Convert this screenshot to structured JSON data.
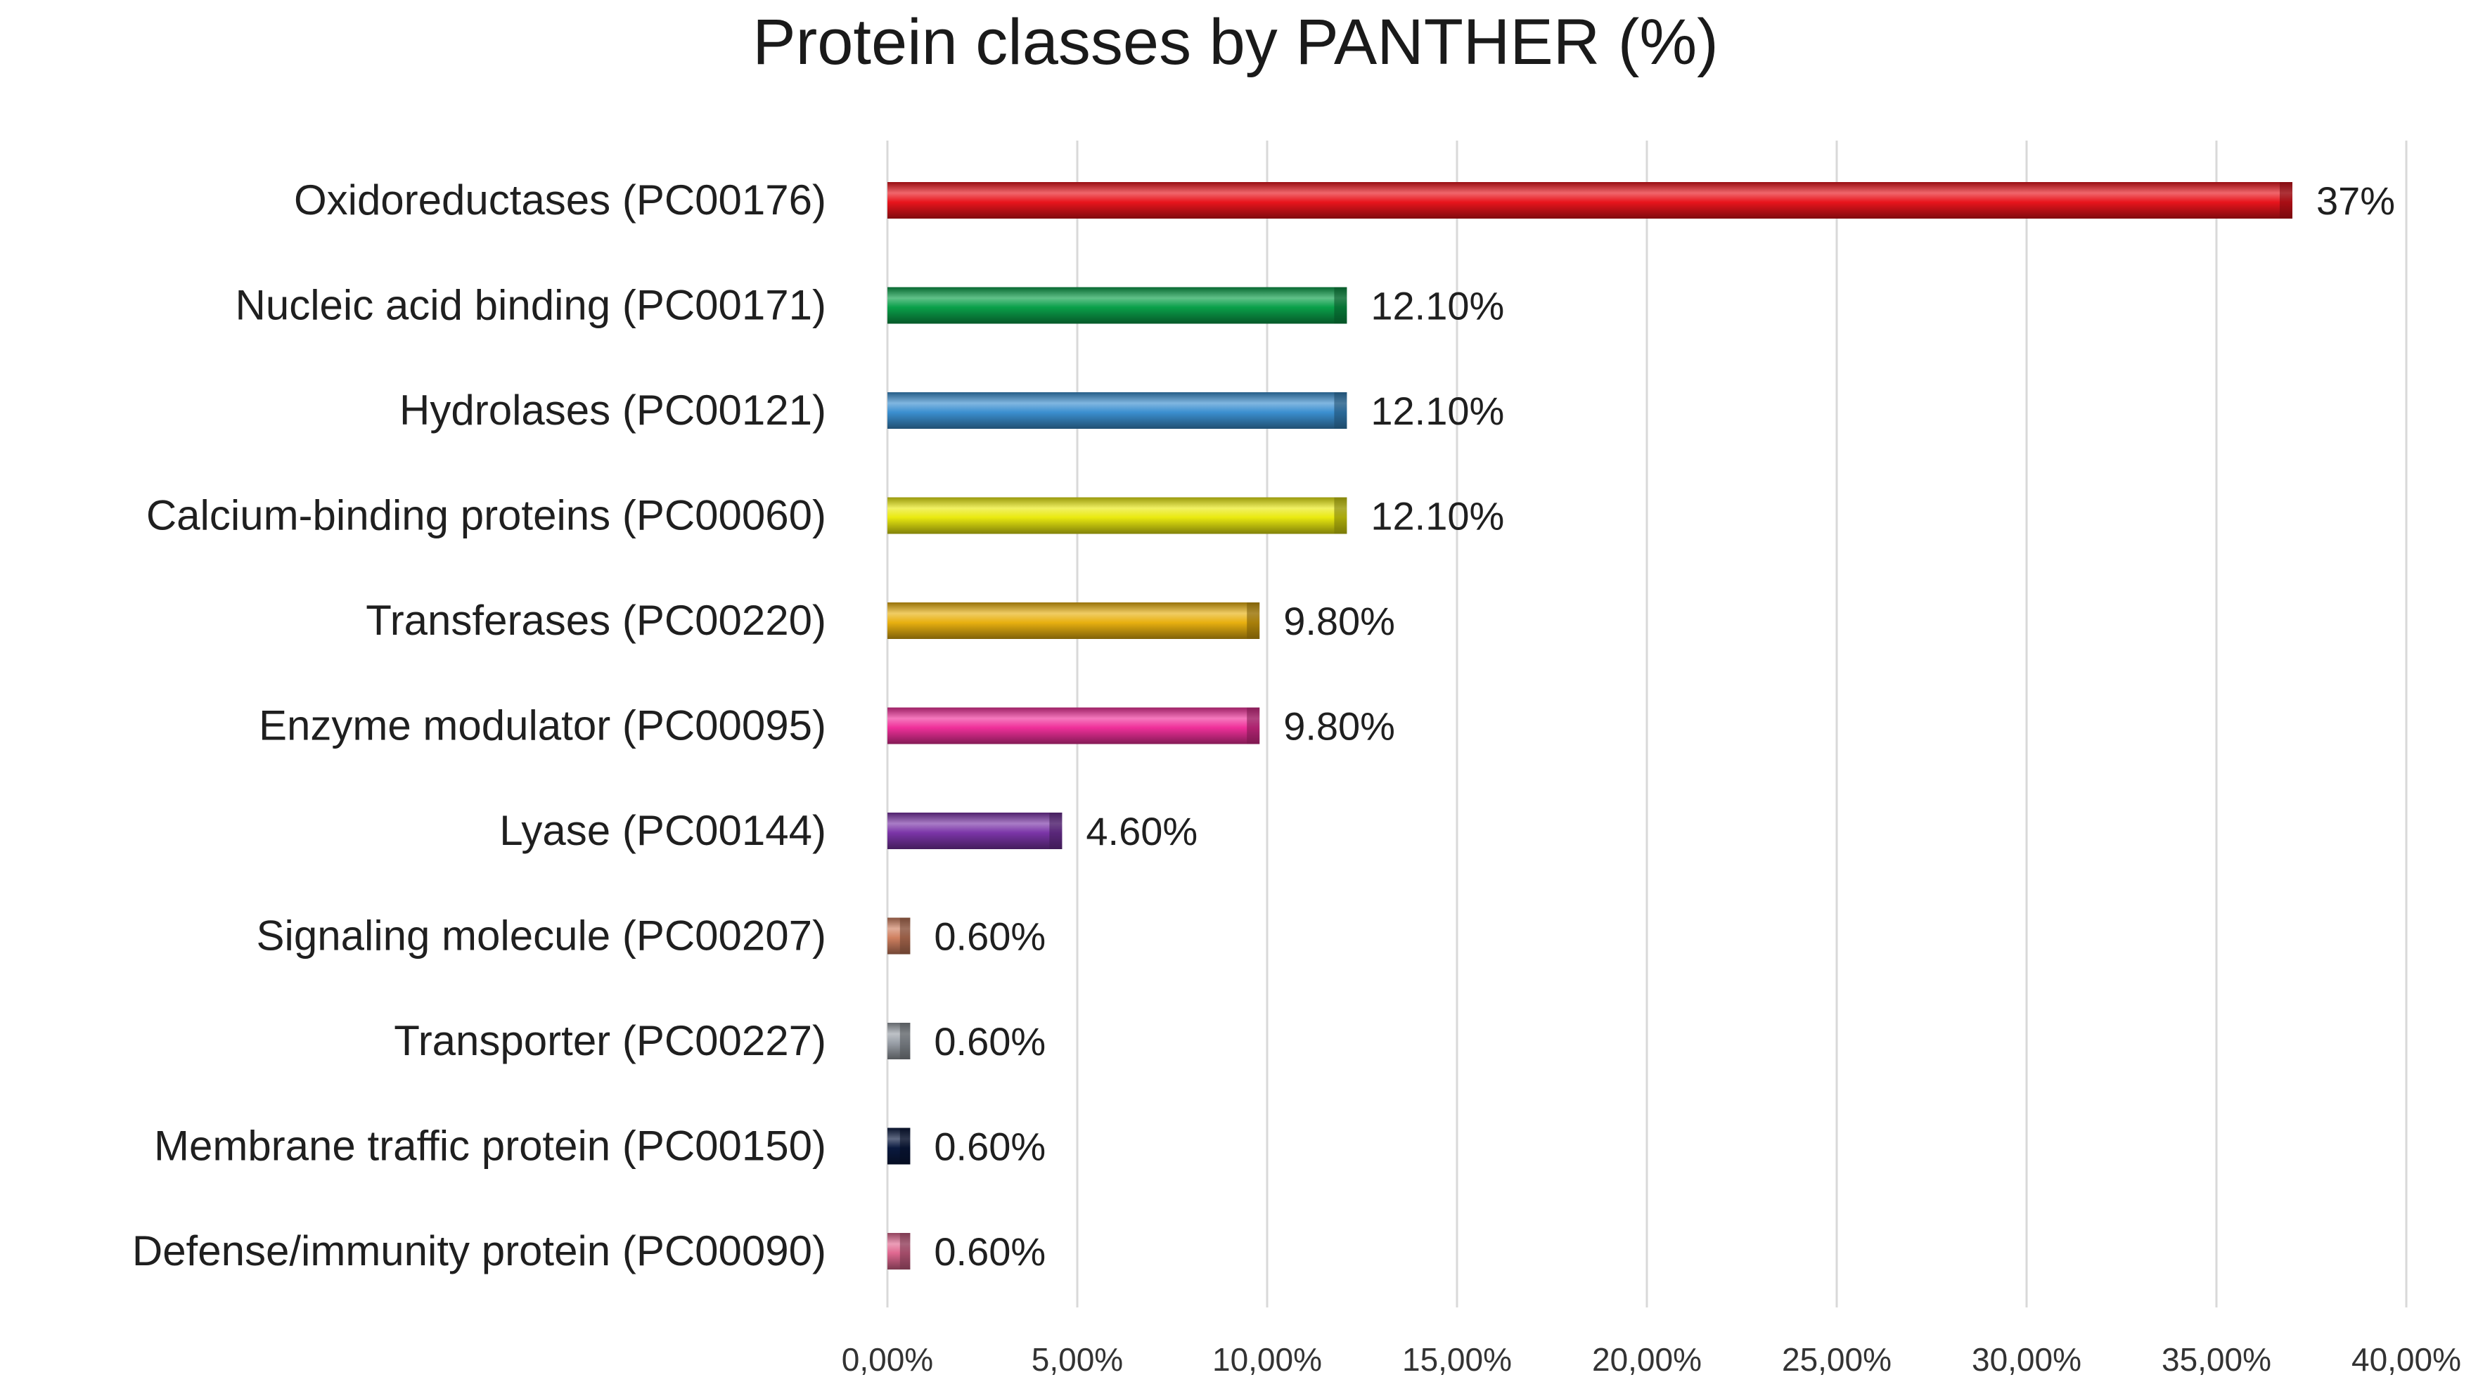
{
  "chart_data": {
    "type": "bar",
    "orientation": "horizontal",
    "title": "Protein classes by PANTHER (%)",
    "xlabel": "",
    "ylabel": "",
    "xlim": [
      0,
      40
    ],
    "grid": true,
    "legend": "none",
    "categories": [
      "Oxidoreductases (PC00176)",
      "Nucleic acid binding (PC00171)",
      "Hydrolases (PC00121)",
      "Calcium-binding proteins (PC00060)",
      "Transferases (PC00220)",
      "Enzyme modulator (PC00095)",
      "Lyase (PC00144)",
      "Signaling molecule (PC00207)",
      "Transporter (PC00227)",
      "Membrane traffic protein (PC00150)",
      "Defense/immunity protein (PC00090)"
    ],
    "values": [
      37,
      12.1,
      12.1,
      12.1,
      9.8,
      9.8,
      4.6,
      0.6,
      0.6,
      0.6,
      0.6
    ],
    "value_labels": [
      "37%",
      "12.10%",
      "12.10%",
      "12.10%",
      "9.80%",
      "9.80%",
      "4.60%",
      "0.60%",
      "0.60%",
      "0.60%",
      "0.60%"
    ],
    "colors": [
      "#e8141c",
      "#0aa04a",
      "#3b8fd0",
      "#eaea10",
      "#e8b010",
      "#f0309a",
      "#7b35a8",
      "#d08060",
      "#9aa0a8",
      "#0a1a40",
      "#e06890"
    ],
    "ticks": [
      0,
      5,
      10,
      15,
      20,
      25,
      30,
      35,
      40
    ],
    "tick_labels": [
      "0,00%",
      "5,00%",
      "10,00%",
      "15,00%",
      "20,00%",
      "25,00%",
      "30,00%",
      "35,00%",
      "40,00%"
    ]
  }
}
